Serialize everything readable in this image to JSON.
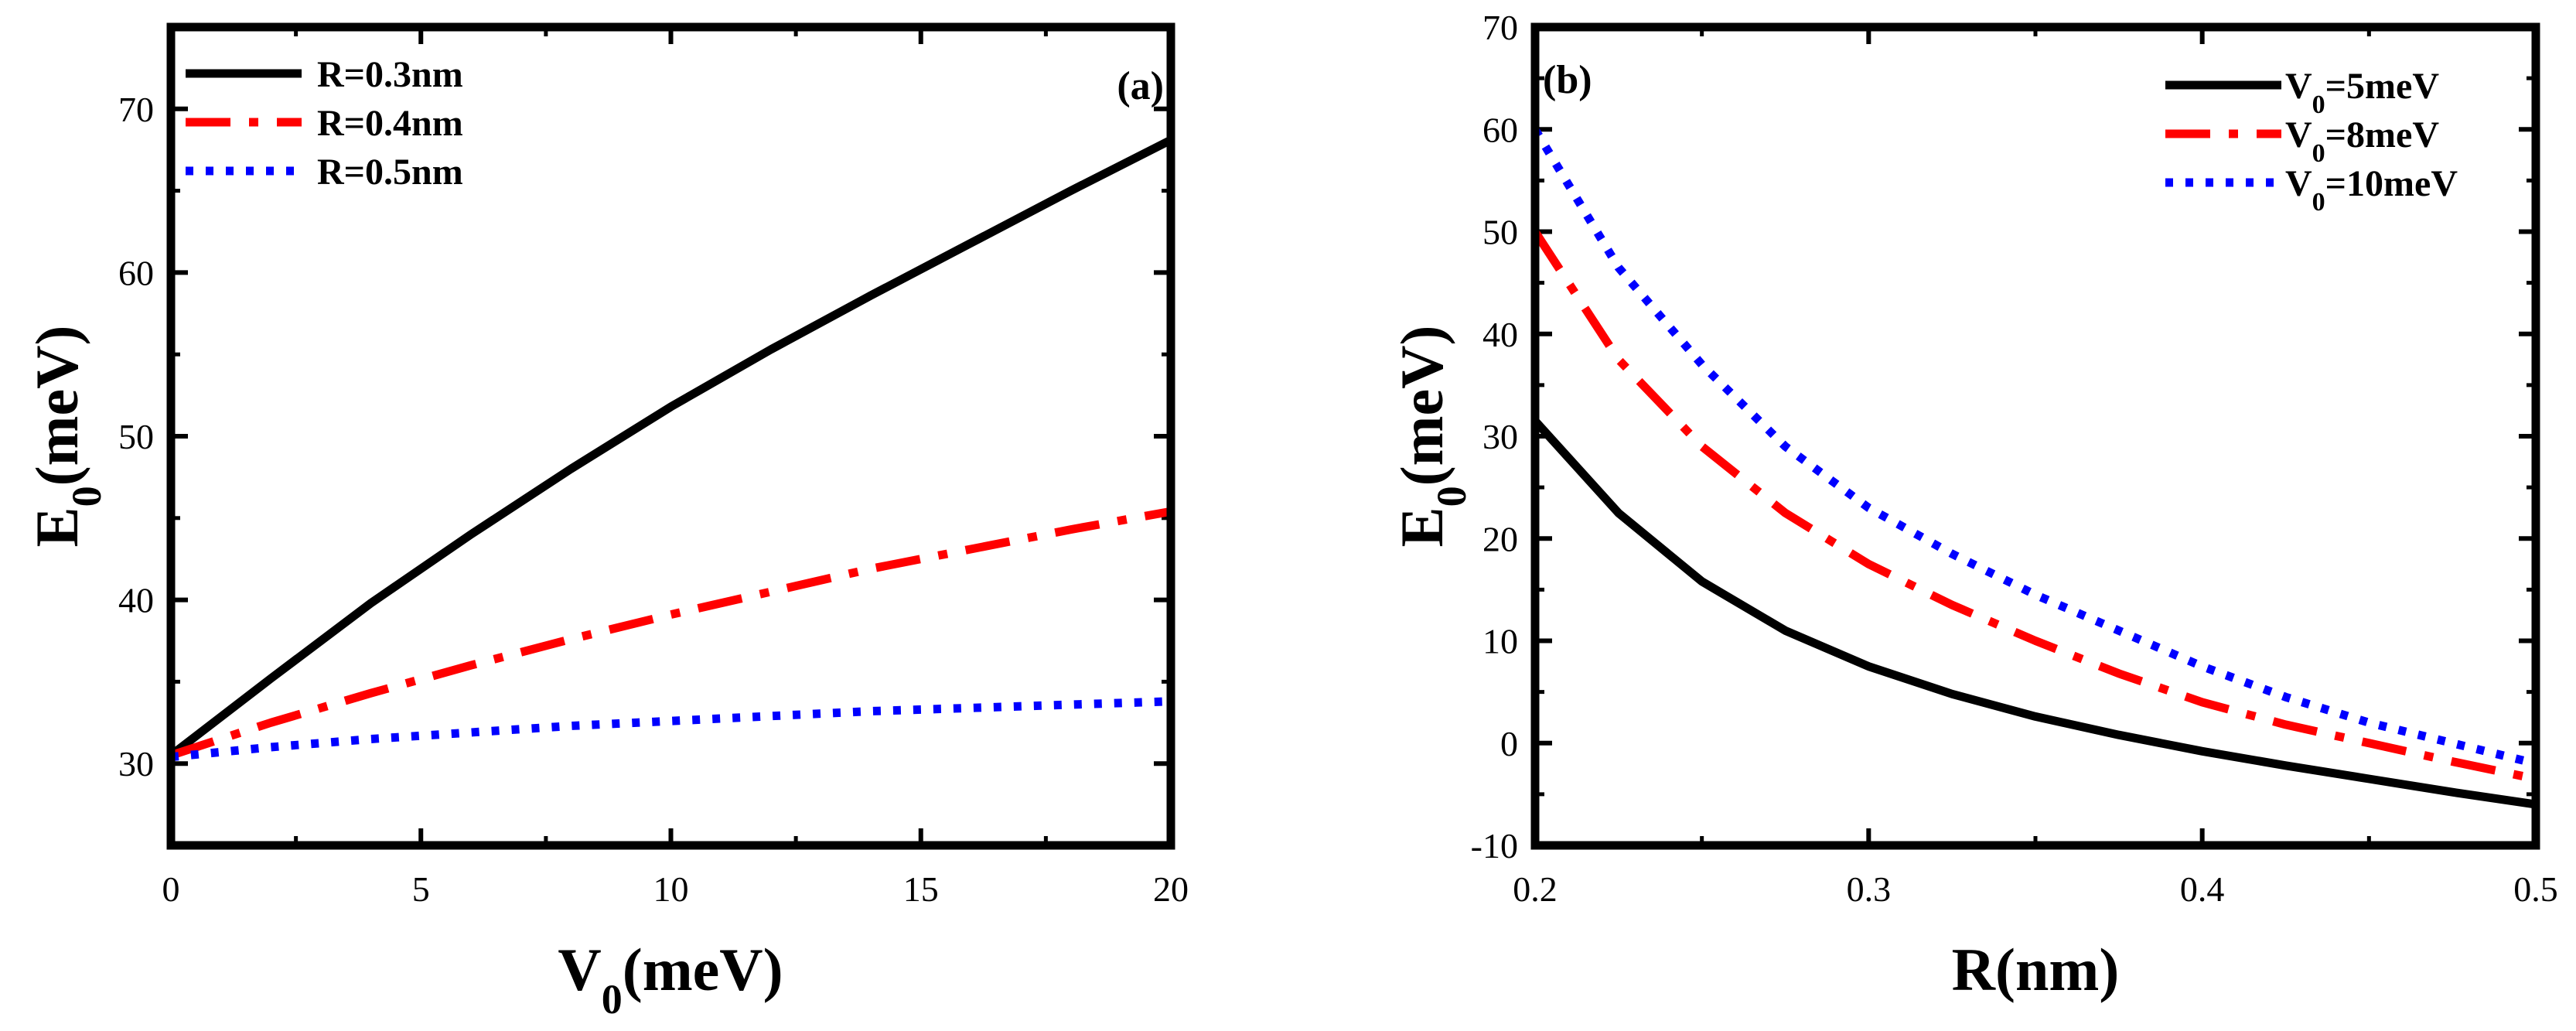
{
  "chart_data": [
    {
      "type": "line",
      "panel_label": "(a)",
      "xlabel": "V",
      "xlabel_sub": "0",
      "xlabel_unit": "(meV)",
      "ylabel": "E",
      "ylabel_sub": "0",
      "ylabel_unit": "(meV)",
      "xlim": [
        0,
        20
      ],
      "ylim": [
        25,
        75
      ],
      "xticks": [
        0,
        5,
        10,
        15,
        20
      ],
      "yticks": [
        30,
        40,
        50,
        60,
        70
      ],
      "legend_position": "top-left",
      "series": [
        {
          "name": "R=0.3nm",
          "color": "#000000",
          "dash": "solid",
          "x": [
            0,
            2,
            4,
            6,
            8,
            10,
            12,
            14,
            16,
            18,
            20
          ],
          "y": [
            30.5,
            35.2,
            39.8,
            44.0,
            48.0,
            51.8,
            55.3,
            58.6,
            61.8,
            65.0,
            68.1
          ]
        },
        {
          "name": "R=0.4nm",
          "color": "#ff0000",
          "dash": "dashdot",
          "x": [
            0,
            2,
            4,
            6,
            8,
            10,
            12,
            14,
            16,
            18,
            20
          ],
          "y": [
            30.5,
            32.5,
            34.3,
            36.0,
            37.6,
            39.1,
            40.5,
            41.9,
            43.1,
            44.3,
            45.4
          ]
        },
        {
          "name": "R=0.5nm",
          "color": "#0000ff",
          "dash": "dotted",
          "x": [
            0,
            2,
            4,
            6,
            8,
            10,
            12,
            14,
            16,
            18,
            20
          ],
          "y": [
            30.4,
            31.0,
            31.5,
            31.9,
            32.3,
            32.6,
            32.9,
            33.2,
            33.4,
            33.6,
            33.8
          ]
        }
      ]
    },
    {
      "type": "line",
      "panel_label": "(b)",
      "xlabel": "R(nm)",
      "ylabel": "E",
      "ylabel_sub": "0",
      "ylabel_unit": "(meV)",
      "xlim": [
        0.2,
        0.5
      ],
      "ylim": [
        -10,
        70
      ],
      "xticks": [
        0.2,
        0.3,
        0.4,
        0.5
      ],
      "xtick_labels": [
        "0.2",
        "0.3",
        "0.4",
        "0.5"
      ],
      "yticks": [
        -10,
        0,
        10,
        20,
        30,
        40,
        50,
        60,
        70
      ],
      "legend_position": "top-right",
      "series": [
        {
          "name_main": "V",
          "name_sub": "0",
          "name_rest": "=5meV",
          "color": "#000000",
          "dash": "solid",
          "x": [
            0.2,
            0.225,
            0.25,
            0.275,
            0.3,
            0.325,
            0.35,
            0.375,
            0.4,
            0.425,
            0.45,
            0.475,
            0.5
          ],
          "y": [
            31.5,
            22.5,
            15.8,
            11.0,
            7.5,
            4.8,
            2.6,
            0.8,
            -0.8,
            -2.2,
            -3.5,
            -4.8,
            -6.0
          ]
        },
        {
          "name_main": "V",
          "name_sub": "0",
          "name_rest": "=8meV",
          "color": "#ff0000",
          "dash": "dashdot",
          "x": [
            0.2,
            0.225,
            0.25,
            0.275,
            0.3,
            0.325,
            0.35,
            0.375,
            0.4,
            0.425,
            0.45,
            0.475,
            0.5
          ],
          "y": [
            50.0,
            37.5,
            29.0,
            22.5,
            17.5,
            13.5,
            10.0,
            6.8,
            4.0,
            1.8,
            0.0,
            -1.8,
            -3.5
          ]
        },
        {
          "name_main": "V",
          "name_sub": "0",
          "name_rest": "=10meV",
          "color": "#0000ff",
          "dash": "dotted",
          "x": [
            0.2,
            0.225,
            0.25,
            0.275,
            0.3,
            0.325,
            0.35,
            0.375,
            0.4,
            0.425,
            0.45,
            0.475,
            0.5
          ],
          "y": [
            60.0,
            46.5,
            37.0,
            29.0,
            23.0,
            18.5,
            14.5,
            11.0,
            7.5,
            4.5,
            2.0,
            0.0,
            -2.0
          ]
        }
      ]
    }
  ]
}
